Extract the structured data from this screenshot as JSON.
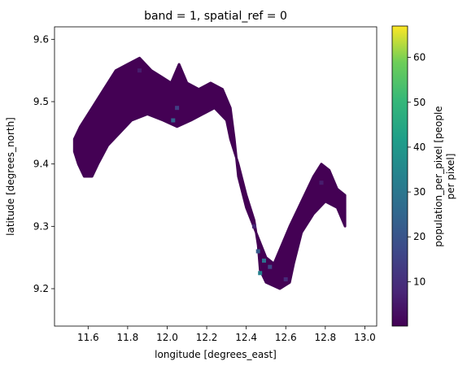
{
  "chart_data": {
    "type": "heatmap",
    "title": "band = 1, spatial_ref = 0",
    "xlabel": "longitude [degrees_east]",
    "ylabel": "latitude [degrees_north]",
    "xlim": [
      11.43,
      13.06
    ],
    "ylim": [
      9.14,
      9.62
    ],
    "xticks": [
      11.6,
      11.8,
      12.0,
      12.2,
      12.4,
      12.6,
      12.8,
      13.0
    ],
    "xtick_labels": [
      "11.6",
      "11.8",
      "12.0",
      "12.2",
      "12.4",
      "12.6",
      "12.8",
      "13.0"
    ],
    "yticks": [
      9.2,
      9.3,
      9.4,
      9.5,
      9.6
    ],
    "ytick_labels": [
      "9.2",
      "9.3",
      "9.4",
      "9.5",
      "9.6"
    ],
    "grid": false,
    "colormap": "viridis",
    "colorbar": {
      "label_line1": "population_per_pixel [people",
      "label_line2": "per pixel]",
      "range": [
        0.1,
        67
      ],
      "ticks": [
        10,
        20,
        30,
        40,
        50,
        60
      ],
      "tick_labels": [
        "10",
        "20",
        "30",
        "40",
        "50",
        "60"
      ]
    },
    "region_outline": [
      [
        11.53,
        9.44
      ],
      [
        11.56,
        9.46
      ],
      [
        11.62,
        9.49
      ],
      [
        11.68,
        9.52
      ],
      [
        11.74,
        9.55
      ],
      [
        11.8,
        9.56
      ],
      [
        11.86,
        9.57
      ],
      [
        11.92,
        9.55
      ],
      [
        11.97,
        9.54
      ],
      [
        12.02,
        9.53
      ],
      [
        12.06,
        9.56
      ],
      [
        12.1,
        9.53
      ],
      [
        12.16,
        9.52
      ],
      [
        12.22,
        9.53
      ],
      [
        12.28,
        9.52
      ],
      [
        12.32,
        9.49
      ],
      [
        12.34,
        9.44
      ],
      [
        12.36,
        9.38
      ],
      [
        12.4,
        9.33
      ],
      [
        12.45,
        9.29
      ],
      [
        12.5,
        9.25
      ],
      [
        12.54,
        9.24
      ],
      [
        12.58,
        9.27
      ],
      [
        12.62,
        9.3
      ],
      [
        12.68,
        9.34
      ],
      [
        12.74,
        9.38
      ],
      [
        12.78,
        9.4
      ],
      [
        12.82,
        9.39
      ],
      [
        12.86,
        9.36
      ],
      [
        12.9,
        9.35
      ],
      [
        12.9,
        9.3
      ],
      [
        12.86,
        9.33
      ],
      [
        12.8,
        9.34
      ],
      [
        12.74,
        9.32
      ],
      [
        12.68,
        9.29
      ],
      [
        12.64,
        9.24
      ],
      [
        12.62,
        9.21
      ],
      [
        12.57,
        9.2
      ],
      [
        12.5,
        9.21
      ],
      [
        12.47,
        9.23
      ],
      [
        12.46,
        9.27
      ],
      [
        12.44,
        9.31
      ],
      [
        12.4,
        9.35
      ],
      [
        12.36,
        9.4
      ],
      [
        12.32,
        9.44
      ],
      [
        12.3,
        9.47
      ],
      [
        12.24,
        9.49
      ],
      [
        12.18,
        9.48
      ],
      [
        12.12,
        9.47
      ],
      [
        12.05,
        9.46
      ],
      [
        11.98,
        9.47
      ],
      [
        11.9,
        9.48
      ],
      [
        11.82,
        9.47
      ],
      [
        11.76,
        9.45
      ],
      [
        11.7,
        9.43
      ],
      [
        11.65,
        9.4
      ],
      [
        11.62,
        9.38
      ],
      [
        11.58,
        9.38
      ],
      [
        11.55,
        9.4
      ],
      [
        11.53,
        9.42
      ]
    ],
    "hot_spots": [
      {
        "lon": 12.47,
        "lat": 9.225,
        "value": 33
      },
      {
        "lon": 12.49,
        "lat": 9.245,
        "value": 28
      },
      {
        "lon": 12.46,
        "lat": 9.26,
        "value": 22
      },
      {
        "lon": 12.52,
        "lat": 9.235,
        "value": 16
      },
      {
        "lon": 12.03,
        "lat": 9.47,
        "value": 24
      },
      {
        "lon": 12.05,
        "lat": 9.49,
        "value": 14
      },
      {
        "lon": 12.6,
        "lat": 9.215,
        "value": 9
      },
      {
        "lon": 12.44,
        "lat": 9.3,
        "value": 8
      },
      {
        "lon": 11.86,
        "lat": 9.55,
        "value": 6
      },
      {
        "lon": 12.78,
        "lat": 9.37,
        "value": 6
      }
    ]
  }
}
